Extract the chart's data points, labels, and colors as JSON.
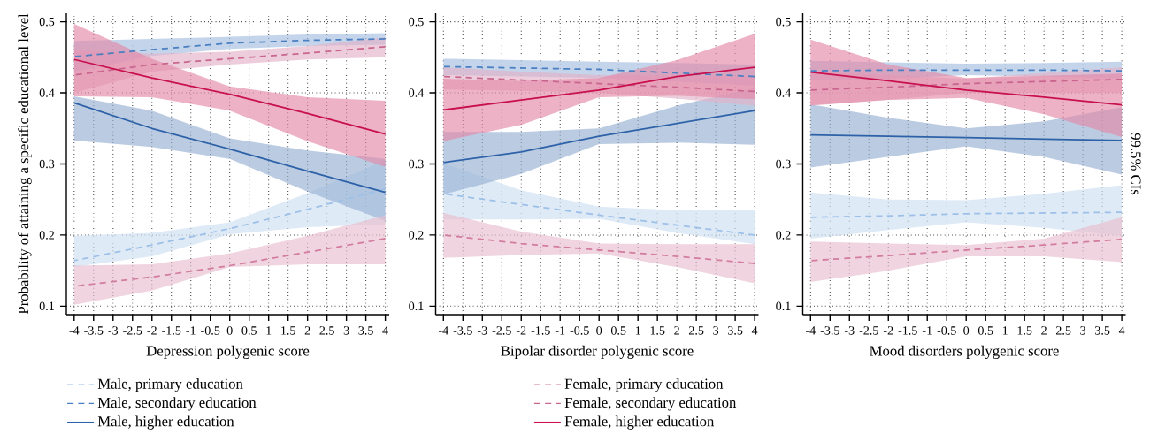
{
  "chart_data": [
    {
      "type": "line",
      "xlabel": "Depression polygenic score",
      "ylabel": "Probability of attaining a specific educational level",
      "x": [
        -4,
        -2,
        0,
        2,
        4
      ],
      "xlim": [
        -4.2,
        4.1
      ],
      "ylim": [
        0.088,
        0.512
      ],
      "xticks": [
        -4,
        -3.5,
        -3,
        -2.5,
        -2,
        -1.5,
        -1,
        -0.5,
        0,
        0.5,
        1,
        1.5,
        2,
        2.5,
        3,
        3.5,
        4
      ],
      "yticks": [
        0.1,
        0.2,
        0.3,
        0.4,
        0.5
      ],
      "grid": true,
      "legend": "bottom",
      "series": [
        {
          "name": "Male, primary education",
          "color": "#9dc0e8",
          "line_style": "dashed",
          "values": [
            0.164,
            0.186,
            0.209,
            0.236,
            0.265
          ],
          "lower": [
            0.155,
            0.17,
            0.201,
            0.211,
            0.215
          ],
          "upper": [
            0.199,
            0.203,
            0.218,
            0.259,
            0.305
          ]
        },
        {
          "name": "Male, secondary education",
          "color": "#4a7fc1",
          "line_style": "dashed",
          "values": [
            0.451,
            0.461,
            0.47,
            0.474,
            0.476
          ],
          "lower": [
            0.43,
            0.452,
            0.462,
            0.466,
            0.468
          ],
          "upper": [
            0.473,
            0.476,
            0.479,
            0.482,
            0.484
          ]
        },
        {
          "name": "Male, higher education",
          "color": "#2e62a8",
          "line_style": "solid",
          "values": [
            0.386,
            0.35,
            0.321,
            0.29,
            0.26
          ],
          "lower": [
            0.333,
            0.324,
            0.307,
            0.261,
            0.22
          ],
          "upper": [
            0.395,
            0.375,
            0.336,
            0.319,
            0.307
          ]
        },
        {
          "name": "Female, primary education",
          "color": "#d27c9e",
          "line_style": "dashed",
          "values": [
            0.128,
            0.141,
            0.157,
            0.176,
            0.195
          ],
          "lower": [
            0.102,
            0.122,
            0.155,
            0.159,
            0.159
          ],
          "upper": [
            0.157,
            0.159,
            0.174,
            0.199,
            0.228
          ]
        },
        {
          "name": "Female, secondary education",
          "color": "#c9668f",
          "line_style": "dashed",
          "values": [
            0.425,
            0.44,
            0.448,
            0.456,
            0.465
          ],
          "lower": [
            0.4,
            0.43,
            0.44,
            0.447,
            0.45
          ],
          "upper": [
            0.46,
            0.455,
            0.458,
            0.466,
            0.478
          ]
        },
        {
          "name": "Female, higher education",
          "color": "#c8104f",
          "line_style": "solid",
          "values": [
            0.447,
            0.421,
            0.398,
            0.371,
            0.342
          ],
          "lower": [
            0.395,
            0.394,
            0.375,
            0.332,
            0.296
          ],
          "upper": [
            0.497,
            0.448,
            0.409,
            0.394,
            0.389
          ]
        }
      ]
    },
    {
      "type": "line",
      "xlabel": "Bipolar disorder polygenic score",
      "x": [
        -4,
        -2,
        0,
        2,
        4
      ],
      "xlim": [
        -4.2,
        4.1
      ],
      "ylim": [
        0.088,
        0.512
      ],
      "xticks": [
        -4,
        -3.5,
        -3,
        -2.5,
        -2,
        -1.5,
        -1,
        -0.5,
        0,
        0.5,
        1,
        1.5,
        2,
        2.5,
        3,
        3.5,
        4
      ],
      "yticks": [
        0.1,
        0.2,
        0.3,
        0.4,
        0.5
      ],
      "grid": true,
      "series": [
        {
          "color": "#9dc0e8",
          "line_style": "dashed",
          "values": [
            0.258,
            0.243,
            0.228,
            0.214,
            0.2
          ],
          "lower": [
            0.222,
            0.222,
            0.223,
            0.203,
            0.187
          ],
          "upper": [
            0.301,
            0.263,
            0.24,
            0.235,
            0.235
          ]
        },
        {
          "color": "#4a7fc1",
          "line_style": "dashed",
          "values": [
            0.437,
            0.435,
            0.433,
            0.428,
            0.423
          ],
          "lower": [
            0.425,
            0.423,
            0.421,
            0.416,
            0.41
          ],
          "upper": [
            0.448,
            0.446,
            0.444,
            0.442,
            0.44
          ]
        },
        {
          "color": "#2e62a8",
          "line_style": "solid",
          "values": [
            0.302,
            0.317,
            0.339,
            0.357,
            0.375
          ],
          "lower": [
            0.257,
            0.286,
            0.328,
            0.33,
            0.327
          ],
          "upper": [
            0.345,
            0.345,
            0.35,
            0.382,
            0.407
          ]
        },
        {
          "color": "#d27c9e",
          "line_style": "dashed",
          "values": [
            0.2,
            0.188,
            0.179,
            0.17,
            0.16
          ],
          "lower": [
            0.168,
            0.172,
            0.174,
            0.155,
            0.132
          ],
          "upper": [
            0.231,
            0.205,
            0.188,
            0.187,
            0.187
          ]
        },
        {
          "color": "#c9668f",
          "line_style": "dashed",
          "values": [
            0.423,
            0.418,
            0.413,
            0.408,
            0.402
          ],
          "lower": [
            0.405,
            0.403,
            0.4,
            0.392,
            0.382
          ],
          "upper": [
            0.436,
            0.43,
            0.425,
            0.424,
            0.423
          ]
        },
        {
          "color": "#c8104f",
          "line_style": "solid",
          "values": [
            0.376,
            0.39,
            0.404,
            0.423,
            0.436
          ],
          "lower": [
            0.332,
            0.355,
            0.394,
            0.396,
            0.391
          ],
          "upper": [
            0.42,
            0.417,
            0.421,
            0.446,
            0.483
          ]
        }
      ]
    },
    {
      "type": "line",
      "xlabel": "Mood disorders polygenic score",
      "annotations": [
        "99.5% CIs"
      ],
      "x": [
        -4,
        -2,
        0,
        2,
        4
      ],
      "xlim": [
        -4.2,
        4.1
      ],
      "ylim": [
        0.088,
        0.512
      ],
      "xticks": [
        -4,
        -3.5,
        -3,
        -2.5,
        -2,
        -1.5,
        -1,
        -0.5,
        0,
        0.5,
        1,
        1.5,
        2,
        2.5,
        3,
        3.5,
        4
      ],
      "yticks": [
        0.1,
        0.2,
        0.3,
        0.4,
        0.5
      ],
      "grid": true,
      "series": [
        {
          "color": "#9dc0e8",
          "line_style": "dashed",
          "values": [
            0.225,
            0.227,
            0.23,
            0.231,
            0.232
          ],
          "lower": [
            0.195,
            0.207,
            0.218,
            0.21,
            0.199
          ],
          "upper": [
            0.26,
            0.25,
            0.249,
            0.258,
            0.27
          ]
        },
        {
          "color": "#4a7fc1",
          "line_style": "dashed",
          "values": [
            0.431,
            0.432,
            0.432,
            0.432,
            0.431
          ],
          "lower": [
            0.418,
            0.42,
            0.425,
            0.423,
            0.42
          ],
          "upper": [
            0.445,
            0.443,
            0.441,
            0.442,
            0.444
          ]
        },
        {
          "color": "#2e62a8",
          "line_style": "solid",
          "values": [
            0.341,
            0.339,
            0.337,
            0.335,
            0.333
          ],
          "lower": [
            0.295,
            0.31,
            0.325,
            0.31,
            0.285
          ],
          "upper": [
            0.384,
            0.365,
            0.35,
            0.36,
            0.38
          ]
        },
        {
          "color": "#d27c9e",
          "line_style": "dashed",
          "values": [
            0.164,
            0.171,
            0.179,
            0.186,
            0.194
          ],
          "lower": [
            0.134,
            0.15,
            0.17,
            0.17,
            0.162
          ],
          "upper": [
            0.191,
            0.188,
            0.186,
            0.195,
            0.225
          ]
        },
        {
          "color": "#c9668f",
          "line_style": "dashed",
          "values": [
            0.404,
            0.408,
            0.413,
            0.416,
            0.419
          ],
          "lower": [
            0.383,
            0.39,
            0.4,
            0.4,
            0.4
          ],
          "upper": [
            0.43,
            0.425,
            0.42,
            0.428,
            0.436
          ]
        },
        {
          "color": "#c8104f",
          "line_style": "solid",
          "values": [
            0.429,
            0.417,
            0.404,
            0.394,
            0.383
          ],
          "lower": [
            0.382,
            0.39,
            0.393,
            0.37,
            0.338
          ],
          "upper": [
            0.475,
            0.44,
            0.421,
            0.424,
            0.427
          ]
        }
      ]
    }
  ]
}
